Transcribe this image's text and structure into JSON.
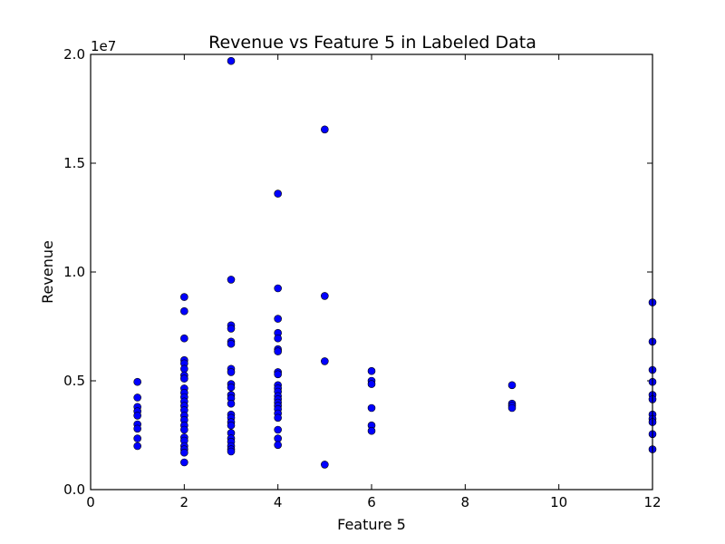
{
  "chart_data": {
    "type": "scatter",
    "title": "Revenue vs Feature 5 in Labeled Data",
    "xlabel": "Feature 5",
    "ylabel": "Revenue",
    "xlim": [
      0,
      12
    ],
    "ylim": [
      0,
      20000000
    ],
    "y_offset_text": "1e7",
    "xticks": [
      0,
      2,
      4,
      6,
      8,
      10,
      12
    ],
    "xtick_labels": [
      "0",
      "2",
      "4",
      "6",
      "8",
      "10",
      "12"
    ],
    "yticks": [
      0,
      5000000,
      10000000,
      15000000,
      20000000
    ],
    "ytick_labels": [
      "0.0",
      "0.5",
      "1.0",
      "1.5",
      "2.0"
    ],
    "grid": false,
    "marker_color": "#0000ff",
    "marker_edge": "#000000",
    "points": [
      {
        "x": 1,
        "y": 4950000
      },
      {
        "x": 1,
        "y": 4230000
      },
      {
        "x": 1,
        "y": 3800000
      },
      {
        "x": 1,
        "y": 3600000
      },
      {
        "x": 1,
        "y": 3400000
      },
      {
        "x": 1,
        "y": 3000000
      },
      {
        "x": 1,
        "y": 2800000
      },
      {
        "x": 1,
        "y": 2350000
      },
      {
        "x": 1,
        "y": 2000000
      },
      {
        "x": 2,
        "y": 8850000
      },
      {
        "x": 2,
        "y": 8200000
      },
      {
        "x": 2,
        "y": 6950000
      },
      {
        "x": 2,
        "y": 5950000
      },
      {
        "x": 2,
        "y": 5800000
      },
      {
        "x": 2,
        "y": 5550000
      },
      {
        "x": 2,
        "y": 5250000
      },
      {
        "x": 2,
        "y": 5100000
      },
      {
        "x": 2,
        "y": 4650000
      },
      {
        "x": 2,
        "y": 4450000
      },
      {
        "x": 2,
        "y": 4250000
      },
      {
        "x": 2,
        "y": 4050000
      },
      {
        "x": 2,
        "y": 3850000
      },
      {
        "x": 2,
        "y": 3650000
      },
      {
        "x": 2,
        "y": 3400000
      },
      {
        "x": 2,
        "y": 3200000
      },
      {
        "x": 2,
        "y": 2950000
      },
      {
        "x": 2,
        "y": 2750000
      },
      {
        "x": 2,
        "y": 2400000
      },
      {
        "x": 2,
        "y": 2250000
      },
      {
        "x": 2,
        "y": 2000000
      },
      {
        "x": 2,
        "y": 1850000
      },
      {
        "x": 2,
        "y": 1700000
      },
      {
        "x": 2,
        "y": 1250000
      },
      {
        "x": 3,
        "y": 19700000
      },
      {
        "x": 3,
        "y": 9650000
      },
      {
        "x": 3,
        "y": 7550000
      },
      {
        "x": 3,
        "y": 7400000
      },
      {
        "x": 3,
        "y": 6800000
      },
      {
        "x": 3,
        "y": 6700000
      },
      {
        "x": 3,
        "y": 5550000
      },
      {
        "x": 3,
        "y": 5400000
      },
      {
        "x": 3,
        "y": 4850000
      },
      {
        "x": 3,
        "y": 4700000
      },
      {
        "x": 3,
        "y": 4350000
      },
      {
        "x": 3,
        "y": 4200000
      },
      {
        "x": 3,
        "y": 3950000
      },
      {
        "x": 3,
        "y": 3450000
      },
      {
        "x": 3,
        "y": 3300000
      },
      {
        "x": 3,
        "y": 3100000
      },
      {
        "x": 3,
        "y": 2950000
      },
      {
        "x": 3,
        "y": 2600000
      },
      {
        "x": 3,
        "y": 2350000
      },
      {
        "x": 3,
        "y": 2200000
      },
      {
        "x": 3,
        "y": 2000000
      },
      {
        "x": 3,
        "y": 1850000
      },
      {
        "x": 3,
        "y": 1750000
      },
      {
        "x": 4,
        "y": 13600000
      },
      {
        "x": 4,
        "y": 9250000
      },
      {
        "x": 4,
        "y": 7850000
      },
      {
        "x": 4,
        "y": 7200000
      },
      {
        "x": 4,
        "y": 6950000
      },
      {
        "x": 4,
        "y": 6450000
      },
      {
        "x": 4,
        "y": 6350000
      },
      {
        "x": 4,
        "y": 5400000
      },
      {
        "x": 4,
        "y": 5300000
      },
      {
        "x": 4,
        "y": 4800000
      },
      {
        "x": 4,
        "y": 4650000
      },
      {
        "x": 4,
        "y": 4500000
      },
      {
        "x": 4,
        "y": 4300000
      },
      {
        "x": 4,
        "y": 4150000
      },
      {
        "x": 4,
        "y": 4000000
      },
      {
        "x": 4,
        "y": 3850000
      },
      {
        "x": 4,
        "y": 3700000
      },
      {
        "x": 4,
        "y": 3500000
      },
      {
        "x": 4,
        "y": 3300000
      },
      {
        "x": 4,
        "y": 2750000
      },
      {
        "x": 4,
        "y": 2350000
      },
      {
        "x": 4,
        "y": 2050000
      },
      {
        "x": 5,
        "y": 16550000
      },
      {
        "x": 5,
        "y": 8900000
      },
      {
        "x": 5,
        "y": 5900000
      },
      {
        "x": 5,
        "y": 1150000
      },
      {
        "x": 6,
        "y": 5450000
      },
      {
        "x": 6,
        "y": 5000000
      },
      {
        "x": 6,
        "y": 4850000
      },
      {
        "x": 6,
        "y": 3750000
      },
      {
        "x": 6,
        "y": 2950000
      },
      {
        "x": 6,
        "y": 2700000
      },
      {
        "x": 9,
        "y": 4800000
      },
      {
        "x": 9,
        "y": 3950000
      },
      {
        "x": 9,
        "y": 3850000
      },
      {
        "x": 9,
        "y": 3750000
      },
      {
        "x": 12,
        "y": 8600000
      },
      {
        "x": 12,
        "y": 6800000
      },
      {
        "x": 12,
        "y": 5500000
      },
      {
        "x": 12,
        "y": 4950000
      },
      {
        "x": 12,
        "y": 4350000
      },
      {
        "x": 12,
        "y": 4150000
      },
      {
        "x": 12,
        "y": 3450000
      },
      {
        "x": 12,
        "y": 3250000
      },
      {
        "x": 12,
        "y": 3100000
      },
      {
        "x": 12,
        "y": 2550000
      },
      {
        "x": 12,
        "y": 1850000
      }
    ]
  }
}
